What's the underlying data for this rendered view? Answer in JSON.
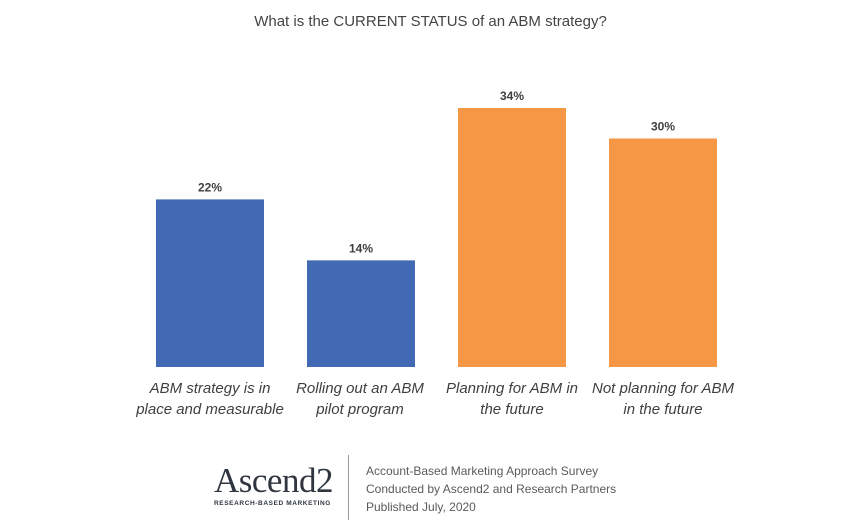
{
  "chart_data": {
    "type": "bar",
    "title": "What is the CURRENT STATUS of an ABM strategy?",
    "categories": [
      [
        "ABM strategy is in",
        "place and measurable"
      ],
      [
        "Rolling out an ABM",
        "pilot program"
      ],
      [
        "Planning for ABM in",
        "the future"
      ],
      [
        "Not planning for ABM",
        "in the future"
      ]
    ],
    "values": [
      22,
      14,
      34,
      30
    ],
    "value_labels": [
      "22%",
      "14%",
      "34%",
      "30%"
    ],
    "bar_colors": [
      "#4169b4",
      "#4169b4",
      "#f69746",
      "#f69746"
    ],
    "ylim": [
      0,
      34
    ],
    "grid": false,
    "legend": "none"
  },
  "footer": {
    "logo": {
      "word_main": "Ascend",
      "word_num": "2",
      "tagline": "RESEARCH-BASED MARKETING"
    },
    "lines": [
      "Account-Based Marketing Approach Survey",
      "Conducted by Ascend2 and Research Partners",
      "Published July, 2020"
    ]
  }
}
